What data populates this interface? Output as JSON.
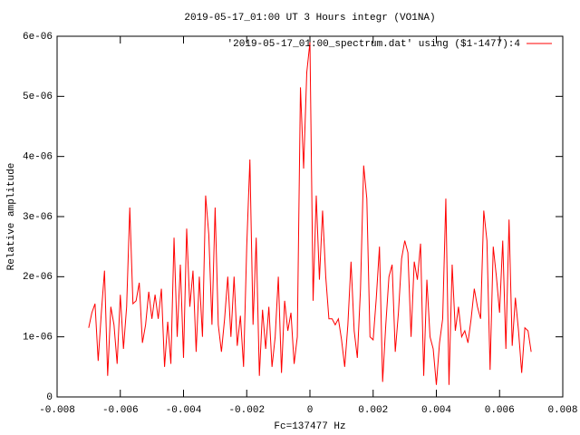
{
  "chart_data": {
    "type": "line",
    "title": "2019-05-17_01:00 UT 3 Hours integr (VO1NA)",
    "xlabel": "Fc=137477 Hz",
    "ylabel": "Relative amplitude",
    "legend": "top right",
    "series": [
      {
        "name": "'2019-05-17_01:00_spectrum.dat' using ($1-1477):4",
        "color": "#ff0000",
        "x": [
          -0.007,
          -0.0069,
          -0.0068,
          -0.0067,
          -0.0066,
          -0.0065,
          -0.0064,
          -0.0063,
          -0.0062,
          -0.0061,
          -0.006,
          -0.0059,
          -0.0058,
          -0.0057,
          -0.0056,
          -0.0055,
          -0.0054,
          -0.0053,
          -0.0052,
          -0.0051,
          -0.005,
          -0.0049,
          -0.0048,
          -0.0047,
          -0.0046,
          -0.0045,
          -0.0044,
          -0.0043,
          -0.0042,
          -0.0041,
          -0.004,
          -0.0039,
          -0.0038,
          -0.0037,
          -0.0036,
          -0.0035,
          -0.0034,
          -0.0033,
          -0.0032,
          -0.0031,
          -0.003,
          -0.0029,
          -0.0028,
          -0.0027,
          -0.0026,
          -0.0025,
          -0.0024,
          -0.0023,
          -0.0022,
          -0.0021,
          -0.002,
          -0.0019,
          -0.0018,
          -0.0017,
          -0.0016,
          -0.0015,
          -0.0014,
          -0.0013,
          -0.0012,
          -0.0011,
          -0.001,
          -0.0009,
          -0.0008,
          -0.0007,
          -0.0006,
          -0.0005,
          -0.0004,
          -0.0003,
          -0.0002,
          -0.0001,
          0,
          0.0001,
          0.0002,
          0.0003,
          0.0004,
          0.0005,
          0.0006,
          0.0007,
          0.0008,
          0.0009,
          0.001,
          0.0011,
          0.0012,
          0.0013,
          0.0014,
          0.0015,
          0.0016,
          0.0017,
          0.0018,
          0.0019,
          0.002,
          0.0021,
          0.0022,
          0.0023,
          0.0024,
          0.0025,
          0.0026,
          0.0027,
          0.0028,
          0.0029,
          0.003,
          0.0031,
          0.0032,
          0.0033,
          0.0034,
          0.0035,
          0.0036,
          0.0037,
          0.0038,
          0.0039,
          0.004,
          0.0041,
          0.0042,
          0.0043,
          0.0044,
          0.0045,
          0.0046,
          0.0047,
          0.0048,
          0.0049,
          0.005,
          0.0051,
          0.0052,
          0.0053,
          0.0054,
          0.0055,
          0.0056,
          0.0057,
          0.0058,
          0.0059,
          0.006,
          0.0061,
          0.0062,
          0.0063,
          0.0064,
          0.0065,
          0.0066,
          0.0067,
          0.0068,
          0.0069,
          0.007
        ],
        "values": [
          1.15e-06,
          1.4e-06,
          1.55e-06,
          6e-07,
          1.4e-06,
          2.1e-06,
          3.5e-07,
          1.5e-06,
          1.2e-06,
          5.5e-07,
          1.7e-06,
          8e-07,
          1.5e-06,
          3.15e-06,
          1.55e-06,
          1.6e-06,
          1.9e-06,
          9e-07,
          1.2e-06,
          1.75e-06,
          1.3e-06,
          1.7e-06,
          1.3e-06,
          1.8e-06,
          5e-07,
          1.25e-06,
          5.5e-07,
          2.65e-06,
          1e-06,
          2.2e-06,
          6.5e-07,
          2.8e-06,
          1.5e-06,
          2.1e-06,
          7.5e-07,
          2e-06,
          1e-06,
          3.35e-06,
          2.7e-06,
          1.2e-06,
          3.15e-06,
          1.2e-06,
          7.5e-07,
          1.3e-06,
          2e-06,
          1e-06,
          2e-06,
          8.5e-07,
          1.35e-06,
          5e-07,
          2.5e-06,
          3.95e-06,
          1.2e-06,
          2.65e-06,
          3.5e-07,
          1.45e-06,
          8e-07,
          1.5e-06,
          5e-07,
          1e-06,
          2e-06,
          4e-07,
          1.6e-06,
          1.1e-06,
          1.4e-06,
          5.5e-07,
          1e-06,
          5.15e-06,
          3.8e-06,
          5.4e-06,
          5.9e-06,
          1.6e-06,
          3.35e-06,
          1.95e-06,
          3.1e-06,
          2e-06,
          1.3e-06,
          1.3e-06,
          1.2e-06,
          1.3e-06,
          9.5e-07,
          5e-07,
          1.2e-06,
          2.25e-06,
          1.1e-06,
          6.5e-07,
          1.8e-06,
          3.85e-06,
          3.3e-06,
          1e-06,
          9.5e-07,
          1.65e-06,
          2.5e-06,
          2.5e-07,
          1.2e-06,
          2e-06,
          2.2e-06,
          7.5e-07,
          1.4e-06,
          2.3e-06,
          2.6e-06,
          2.4e-06,
          1e-06,
          2.25e-06,
          1.95e-06,
          2.55e-06,
          3.5e-07,
          1.95e-06,
          1e-06,
          8e-07,
          2e-07,
          9e-07,
          1.3e-06,
          3.3e-06,
          2e-07,
          2.2e-06,
          1.1e-06,
          1.5e-06,
          1e-06,
          1.1e-06,
          9e-07,
          1.3e-06,
          1.8e-06,
          1.5e-06,
          1.3e-06,
          3.1e-06,
          2.6e-06,
          4.5e-07,
          2.5e-06,
          2e-06,
          1.4e-06,
          2.6e-06,
          8e-07,
          2.95e-06,
          8.5e-07,
          1.65e-06,
          1.1e-06,
          4e-07,
          1.15e-06,
          1.1e-06,
          7.5e-07
        ]
      }
    ],
    "xlim": [
      -0.008,
      0.008
    ],
    "xticks": [
      -0.008,
      -0.006,
      -0.004,
      -0.002,
      0,
      0.002,
      0.004,
      0.006,
      0.008
    ],
    "ylim": [
      0,
      6e-06
    ],
    "yticks": [
      0,
      {
        "value": 1e-06,
        "label": "1e-06"
      },
      {
        "value": 2e-06,
        "label": "2e-06"
      },
      {
        "value": 3e-06,
        "label": "3e-06"
      },
      {
        "value": 4e-06,
        "label": "4e-06"
      },
      {
        "value": 5e-06,
        "label": "5e-06"
      },
      {
        "value": 6e-06,
        "label": "6e-06"
      }
    ]
  }
}
